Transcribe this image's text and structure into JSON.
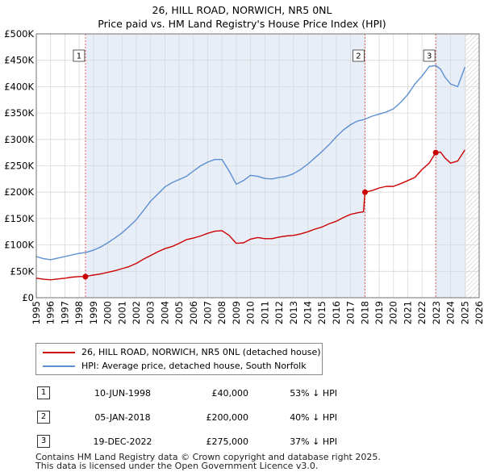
{
  "title": {
    "line1": "26, HILL ROAD, NORWICH, NR5 0NL",
    "line2": "Price paid vs. HM Land Registry's House Price Index (HPI)"
  },
  "colors": {
    "price_line": "#cc0000",
    "hpi_line": "#5b8fd0",
    "sale_region": "#e8eef8",
    "vline": "#e06060",
    "grid": "#d8d8d8"
  },
  "chart_data": {
    "type": "line",
    "xlim": [
      1995,
      2026
    ],
    "ylim": [
      0,
      500000
    ],
    "x_ticks": [
      1995,
      1996,
      1997,
      1998,
      1999,
      2000,
      2001,
      2002,
      2003,
      2004,
      2005,
      2006,
      2007,
      2008,
      2009,
      2010,
      2011,
      2012,
      2013,
      2014,
      2015,
      2016,
      2017,
      2018,
      2019,
      2020,
      2021,
      2022,
      2023,
      2024,
      2025,
      2026
    ],
    "y_ticks": [
      {
        "value": 0,
        "label": "£0"
      },
      {
        "value": 50000,
        "label": "£50K"
      },
      {
        "value": 100000,
        "label": "£100K"
      },
      {
        "value": 150000,
        "label": "£150K"
      },
      {
        "value": 200000,
        "label": "£200K"
      },
      {
        "value": 250000,
        "label": "£250K"
      },
      {
        "value": 300000,
        "label": "£300K"
      },
      {
        "value": 350000,
        "label": "£350K"
      },
      {
        "value": 400000,
        "label": "£400K"
      },
      {
        "value": 450000,
        "label": "£450K"
      },
      {
        "value": 500000,
        "label": "£500K"
      }
    ],
    "grid": true,
    "series": [
      {
        "name": "26, HILL ROAD, NORWICH, NR5 0NL (detached house)",
        "color": "#cc0000",
        "x": [
          1995.0,
          1995.5,
          1996.0,
          1996.5,
          1997.0,
          1997.5,
          1998.0,
          1998.44,
          1998.8,
          1999.5,
          2000.0,
          2000.5,
          2001.0,
          2001.5,
          2002.0,
          2002.5,
          2003.0,
          2003.5,
          2004.0,
          2004.5,
          2005.0,
          2005.5,
          2006.0,
          2006.5,
          2007.0,
          2007.5,
          2008.0,
          2008.5,
          2009.0,
          2009.5,
          2010.0,
          2010.5,
          2011.0,
          2011.5,
          2012.0,
          2012.5,
          2013.0,
          2013.5,
          2014.0,
          2014.5,
          2015.0,
          2015.5,
          2016.0,
          2016.5,
          2017.0,
          2017.5,
          2017.9,
          2018.01,
          2018.5,
          2019.0,
          2019.5,
          2020.0,
          2020.5,
          2021.0,
          2021.5,
          2022.0,
          2022.5,
          2022.96,
          2023.3,
          2023.6,
          2024.0,
          2024.5,
          2025.0
        ],
        "y": [
          37000,
          35000,
          34000,
          35500,
          37000,
          39000,
          40000,
          40000,
          42000,
          45000,
          48000,
          51000,
          55000,
          59000,
          65000,
          73000,
          80000,
          87000,
          93000,
          97000,
          103000,
          110000,
          113000,
          117000,
          122000,
          126000,
          127000,
          118000,
          103000,
          104000,
          111000,
          114000,
          112000,
          112000,
          115000,
          117000,
          118000,
          121000,
          125000,
          130000,
          134000,
          140000,
          145000,
          152000,
          158000,
          161000,
          163000,
          200000,
          203000,
          208000,
          211000,
          211000,
          216000,
          222000,
          228000,
          243000,
          255000,
          275000,
          276000,
          265000,
          255000,
          259000,
          280000
        ]
      },
      {
        "name": "HPI: Average price, detached house, South Norfolk",
        "color": "#5b8fd0",
        "x": [
          1995.0,
          1995.5,
          1996.0,
          1996.5,
          1997.0,
          1997.5,
          1998.0,
          1998.5,
          1999.0,
          1999.5,
          2000.0,
          2000.5,
          2001.0,
          2001.5,
          2002.0,
          2002.5,
          2003.0,
          2003.5,
          2004.0,
          2004.5,
          2005.0,
          2005.5,
          2006.0,
          2006.5,
          2007.0,
          2007.5,
          2008.0,
          2008.5,
          2009.0,
          2009.5,
          2010.0,
          2010.5,
          2011.0,
          2011.5,
          2012.0,
          2012.5,
          2013.0,
          2013.5,
          2014.0,
          2014.5,
          2015.0,
          2015.5,
          2016.0,
          2016.5,
          2017.0,
          2017.5,
          2018.0,
          2018.5,
          2019.0,
          2019.5,
          2020.0,
          2020.5,
          2021.0,
          2021.5,
          2022.0,
          2022.5,
          2022.96,
          2023.3,
          2023.6,
          2024.0,
          2024.5,
          2025.0
        ],
        "y": [
          78000,
          74000,
          72000,
          75000,
          78000,
          81000,
          84000,
          86000,
          90000,
          96000,
          104000,
          113000,
          123000,
          135000,
          148000,
          165000,
          183000,
          196000,
          210000,
          218000,
          224000,
          230000,
          240000,
          250000,
          257000,
          262000,
          262000,
          240000,
          215000,
          222000,
          232000,
          230000,
          226000,
          225000,
          228000,
          230000,
          235000,
          243000,
          253000,
          265000,
          277000,
          290000,
          305000,
          318000,
          328000,
          335000,
          338000,
          344000,
          348000,
          352000,
          358000,
          370000,
          385000,
          405000,
          420000,
          438000,
          440000,
          433000,
          418000,
          405000,
          400000,
          437000
        ]
      }
    ],
    "sales": [
      {
        "label": "1",
        "x": 1998.44,
        "price": 40000
      },
      {
        "label": "2",
        "x": 2018.01,
        "price": 200000
      },
      {
        "label": "3",
        "x": 2022.96,
        "price": 275000
      }
    ],
    "legend_position": "bottom-left-outside"
  },
  "legend": {
    "price_label": "26, HILL ROAD, NORWICH, NR5 0NL (detached house)",
    "hpi_label": "HPI: Average price, detached house, South Norfolk"
  },
  "sales_table": [
    {
      "num": "1",
      "date": "10-JUN-1998",
      "price": "£40,000",
      "hpi": "53% ↓ HPI"
    },
    {
      "num": "2",
      "date": "05-JAN-2018",
      "price": "£200,000",
      "hpi": "40% ↓ HPI"
    },
    {
      "num": "3",
      "date": "19-DEC-2022",
      "price": "£275,000",
      "hpi": "37% ↓ HPI"
    }
  ],
  "footer": {
    "line1": "Contains HM Land Registry data © Crown copyright and database right 2025.",
    "line2": "This data is licensed under the Open Government Licence v3.0."
  }
}
